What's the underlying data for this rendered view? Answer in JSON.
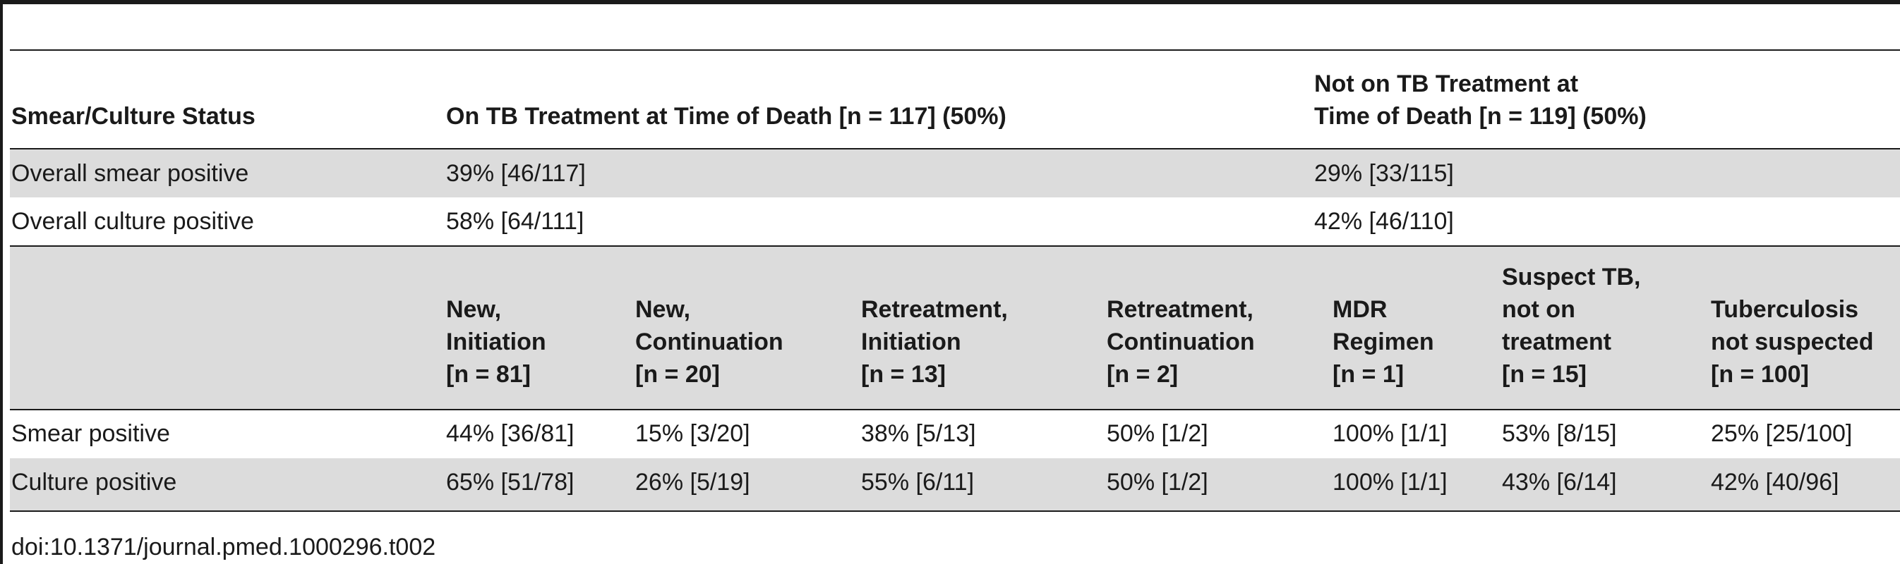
{
  "table": {
    "header": {
      "status": "Smear/Culture Status",
      "on_treatment": "On TB Treatment at Time of Death [n = 117] (50%)",
      "not_on_treatment": "Not on TB Treatment at\nTime of Death [n = 119] (50%)"
    },
    "overall_rows": [
      {
        "label": "Overall smear positive",
        "on": "39% [46/117]",
        "not_on": "29% [33/115]"
      },
      {
        "label": "Overall culture positive",
        "on": "58% [64/111]",
        "not_on": "42% [46/110]"
      }
    ],
    "subheaders": [
      "New,\nInitiation\n[n = 81]",
      "New,\nContinuation\n[n = 20]",
      "Retreatment,\nInitiation\n[n = 13]",
      "Retreatment,\nContinuation\n[n = 2]",
      "MDR\nRegimen\n[n = 1]",
      "Suspect TB,\nnot on\ntreatment\n[n = 15]",
      "Tuberculosis\nnot suspected\n[n = 100]"
    ],
    "detail_rows": [
      {
        "label": "Smear positive",
        "values": [
          "44% [36/81]",
          "15% [3/20]",
          "38% [5/13]",
          "50% [1/2]",
          "100% [1/1]",
          "53% [8/15]",
          "25% [25/100]"
        ]
      },
      {
        "label": "Culture positive",
        "values": [
          "65% [51/78]",
          "26% [5/19]",
          "55% [6/11]",
          "50% [1/2]",
          "100% [1/1]",
          "43% [6/14]",
          "42% [40/96]"
        ]
      }
    ]
  },
  "caption": "doi:10.1371/journal.pmed.1000296.t002"
}
